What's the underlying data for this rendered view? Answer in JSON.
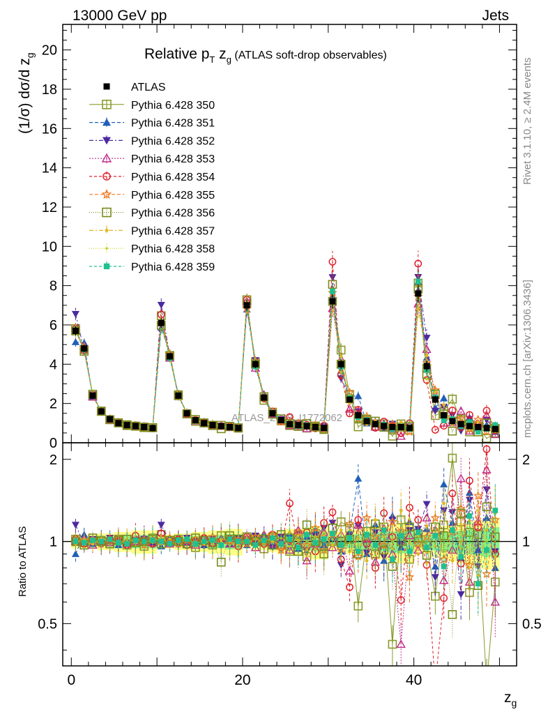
{
  "header": {
    "energy_label": "13000 GeV pp",
    "process_label": "Jets",
    "side_rivet": "Rivet 3.1.10, ≥ 2.4M events",
    "side_mcplots": "mcplots.cern.ch [arXiv:1306.3436]",
    "watermark": "ATLAS_2019_I1772062"
  },
  "chart_data": {
    "type": "scatter",
    "title": {
      "prefix": "Relative p",
      "sub_T": "T",
      "mid": " z",
      "sub_g": "g",
      "suffix": " (ATLAS soft-drop observables)"
    },
    "ylabel": {
      "prefix": "(1/σ) dσ/d z",
      "sub": "g"
    },
    "xlabel": {
      "prefix": "z",
      "sub": "g"
    },
    "ratio_ylabel": "Ratio to ATLAS",
    "xlim": [
      -1,
      52
    ],
    "ylim": [
      0,
      21.3
    ],
    "ratio_ylim": [
      0.35,
      2.3
    ],
    "xticks": [
      "0",
      "20",
      "40"
    ],
    "xtick_values": [
      0,
      20,
      40
    ],
    "yticks": [
      "0",
      "2",
      "4",
      "6",
      "8",
      "10",
      "12",
      "14",
      "16",
      "18",
      "20"
    ],
    "ytick_values": [
      0,
      2,
      4,
      6,
      8,
      10,
      12,
      14,
      16,
      18,
      20
    ],
    "ratio_ticks": [
      "0.5",
      "1",
      "2"
    ],
    "ratio_tick_values": [
      0.5,
      1,
      2
    ],
    "x": [
      0.5,
      1.5,
      2.5,
      3.5,
      4.5,
      5.5,
      6.5,
      7.5,
      8.5,
      9.5,
      10.5,
      11.5,
      12.5,
      13.5,
      14.5,
      15.5,
      16.5,
      17.5,
      18.5,
      19.5,
      20.5,
      21.5,
      22.5,
      23.5,
      24.5,
      25.5,
      26.5,
      27.5,
      28.5,
      29.5,
      30.5,
      31.5,
      32.5,
      33.5,
      34.5,
      35.5,
      36.5,
      37.5,
      38.5,
      39.5,
      40.5,
      41.5,
      42.5,
      43.5,
      44.5,
      45.5,
      46.5,
      47.5,
      48.5,
      49.5
    ],
    "data": {
      "name": "ATLAS",
      "values": [
        5.7,
        4.8,
        2.4,
        1.6,
        1.2,
        1.0,
        0.9,
        0.85,
        0.8,
        0.75,
        6.1,
        4.4,
        2.4,
        1.5,
        1.15,
        1.0,
        0.9,
        0.85,
        0.8,
        0.75,
        7.0,
        4.0,
        2.3,
        1.5,
        1.15,
        0.95,
        0.9,
        0.85,
        0.8,
        0.75,
        7.2,
        4.0,
        2.2,
        1.4,
        1.1,
        0.95,
        0.85,
        0.8,
        0.8,
        0.75,
        7.6,
        3.9,
        2.2,
        1.4,
        1.1,
        0.95,
        0.85,
        0.8,
        0.75,
        0.7
      ],
      "rel_err": [
        0.04,
        0.04,
        0.04,
        0.05,
        0.05,
        0.06,
        0.06,
        0.07,
        0.07,
        0.07,
        0.04,
        0.04,
        0.05,
        0.05,
        0.06,
        0.06,
        0.07,
        0.07,
        0.08,
        0.08,
        0.04,
        0.05,
        0.05,
        0.06,
        0.07,
        0.08,
        0.08,
        0.09,
        0.1,
        0.1,
        0.05,
        0.06,
        0.07,
        0.08,
        0.09,
        0.1,
        0.1,
        0.11,
        0.12,
        0.12,
        0.06,
        0.07,
        0.09,
        0.1,
        0.11,
        0.12,
        0.13,
        0.14,
        0.15,
        0.16
      ]
    },
    "series": [
      {
        "name": "Pythia 6.428 350",
        "color": "#8a9a2c",
        "marker": "square-open",
        "dash": "",
        "ratio": [
          1.02,
          0.99,
          1.0,
          1.01,
          0.98,
          1.02,
          0.97,
          1.0,
          0.96,
          1.03,
          1.06,
          1.0,
          1.02,
          0.98,
          0.95,
          1.01,
          0.97,
          1.05,
          1.02,
          0.99,
          1.01,
          1.03,
          0.94,
          1.04,
          0.97,
          0.92,
          1.06,
          0.88,
          1.07,
          0.96,
          1.0,
          1.18,
          1.12,
          0.58,
          1.03,
          0.9,
          1.13,
          0.42,
          1.2,
          0.86,
          1.07,
          0.97,
          0.63,
          1.15,
          2.02,
          1.18,
          0.65,
          1.06,
          0.3,
          0.71
        ]
      },
      {
        "name": "Pythia 6.428 351",
        "color": "#1f5fb8",
        "marker": "triangle-up",
        "dash": "5,3",
        "ratio": [
          0.9,
          1.06,
          0.98,
          1.02,
          1.0,
          0.97,
          1.01,
          1.02,
          0.99,
          1.0,
          0.96,
          1.03,
          1.01,
          0.99,
          1.02,
          0.97,
          1.0,
          1.03,
          0.98,
          1.02,
          0.97,
          1.01,
          1.05,
          0.96,
          1.02,
          1.07,
          0.94,
          1.04,
          1.1,
          0.97,
          1.03,
          0.92,
          1.08,
          1.7,
          0.9,
          1.15,
          0.85,
          1.24,
          0.95,
          1.18,
          1.08,
          1.11,
          0.81,
          1.62,
          1.17,
          0.87,
          1.51,
          0.93,
          1.22,
          0.8
        ]
      },
      {
        "name": "Pythia 6.428 352",
        "color": "#4b2aa0",
        "marker": "triangle-down",
        "dash": "6,3,2,3",
        "ratio": [
          1.15,
          0.98,
          1.02,
          0.97,
          1.03,
          1.0,
          0.98,
          1.01,
          1.02,
          0.97,
          1.15,
          1.0,
          0.97,
          1.03,
          1.0,
          0.96,
          1.02,
          0.99,
          1.01,
          1.03,
          0.97,
          1.05,
          0.99,
          0.95,
          1.04,
          0.98,
          1.07,
          0.93,
          1.05,
          1.12,
          1.17,
          0.82,
          1.05,
          1.14,
          0.91,
          1.08,
          0.88,
          1.2,
          0.97,
          1.1,
          1.11,
          1.37,
          0.74,
          1.3,
          1.28,
          0.64,
          1.42,
          0.81,
          1.55,
          0.92
        ]
      },
      {
        "name": "Pythia 6.428 353",
        "color": "#c02a8a",
        "marker": "triangle-open",
        "dash": "2,2",
        "ratio": [
          1.0,
          1.02,
          0.97,
          1.01,
          0.99,
          1.02,
          0.98,
          1.0,
          1.03,
          0.99,
          1.01,
          0.98,
          1.02,
          1.0,
          0.97,
          1.03,
          0.99,
          1.01,
          0.98,
          1.02,
          1.03,
          0.95,
          1.06,
          0.98,
          1.01,
          0.93,
          1.1,
          0.85,
          0.98,
          1.08,
          0.95,
          1.06,
          0.78,
          1.15,
          1.02,
          0.84,
          1.12,
          0.9,
          0.42,
          1.05,
          0.93,
          1.22,
          1.1,
          0.72,
          0.93,
          1.7,
          0.71,
          1.18,
          1.83,
          0.6
        ]
      },
      {
        "name": "Pythia 6.428 354",
        "color": "#e0202a",
        "marker": "circle-open",
        "dash": "4,3",
        "ratio": [
          1.02,
          0.98,
          1.01,
          0.99,
          1.02,
          1.0,
          0.97,
          1.05,
          1.0,
          0.98,
          1.07,
          0.99,
          1.02,
          0.97,
          1.01,
          1.03,
          0.98,
          1.0,
          1.02,
          0.96,
          1.04,
          0.99,
          0.98,
          1.06,
          0.95,
          1.38,
          0.96,
          1.08,
          0.92,
          1.17,
          1.28,
          0.86,
          0.68,
          1.2,
          0.98,
          0.8,
          1.27,
          1.04,
          0.61,
          1.33,
          1.2,
          0.82,
          0.3,
          0.62,
          1.5,
          0.83,
          1.67,
          1.13,
          2.18,
          0.9
        ]
      },
      {
        "name": "Pythia 6.428 355",
        "color": "#f07820",
        "marker": "star",
        "dash": "5,3",
        "ratio": [
          0.99,
          1.01,
          1.02,
          0.98,
          1.0,
          1.03,
          0.99,
          1.01,
          0.97,
          1.02,
          1.0,
          1.03,
          0.98,
          1.01,
          1.02,
          0.99,
          1.04,
          0.98,
          1.0,
          1.02,
          0.98,
          1.04,
          1.0,
          1.05,
          0.93,
          1.0,
          1.08,
          0.97,
          1.12,
          0.93,
          1.06,
          0.94,
          1.16,
          0.88,
          1.22,
          1.04,
          0.97,
          1.18,
          1.09,
          0.74,
          0.98,
          1.04,
          1.22,
          0.86,
          1.09,
          1.32,
          0.82,
          1.47,
          0.76,
          1.2
        ]
      },
      {
        "name": "Pythia 6.428 356",
        "color": "#7a8a1a",
        "marker": "square-open",
        "dash": "1,2",
        "ratio": [
          1.0,
          0.97,
          1.03,
          1.0,
          0.98,
          1.01,
          1.02,
          0.99,
          1.0,
          1.02,
          0.98,
          1.01,
          1.0,
          0.98,
          1.03,
          1.01,
          0.99,
          0.84,
          1.05,
          1.02,
          1.04,
          1.0,
          1.02,
          0.97,
          1.06,
          1.03,
          0.92,
          1.15,
          1.0,
          0.9,
          1.12,
          1.0,
          1.02,
          0.9,
          1.09,
          1.16,
          0.93,
          0.81,
          1.0,
          1.13,
          1.03,
          0.89,
          1.13,
          1.05,
          0.54,
          1.27,
          1.08,
          0.69,
          1.34,
          1.04
        ]
      },
      {
        "name": "Pythia 6.428 357",
        "color": "#e0b820",
        "marker": "dot",
        "dash": "6,3,2,3",
        "ratio": [
          1.01,
          1.0,
          0.98,
          1.02,
          1.01,
          0.98,
          1.02,
          1.0,
          0.99,
          1.01,
          1.03,
          0.98,
          1.0,
          1.02,
          0.99,
          1.01,
          0.98,
          1.02,
          1.0,
          0.98,
          1.02,
          0.98,
          1.03,
          1.0,
          0.97,
          1.08,
          1.01,
          0.93,
          1.04,
          1.06,
          0.97,
          1.1,
          0.92,
          1.03,
          0.85,
          1.2,
          1.05,
          0.95,
          1.3,
          1.0,
          0.9,
          1.14,
          0.96,
          1.38,
          0.85,
          1.0,
          1.19,
          0.75,
          1.1,
          1.27
        ]
      },
      {
        "name": "Pythia 6.428 358",
        "color": "#c8d01a",
        "marker": "dot-small",
        "dash": "1,2",
        "ratio": [
          0.98,
          1.02,
          1.0,
          0.99,
          1.01,
          0.98,
          1.0,
          1.02,
          1.01,
          0.99,
          0.98,
          1.02,
          0.99,
          1.01,
          1.0,
          0.98,
          1.02,
          1.0,
          0.97,
          1.01,
          0.99,
          1.02,
          0.98,
          1.01,
          1.03,
          0.96,
          1.05,
          1.0,
          0.94,
          1.08,
          1.02,
          0.9,
          1.1,
          0.96,
          1.04,
          0.89,
          1.16,
          1.0,
          0.92,
          1.21,
          1.05,
          0.83,
          1.17,
          0.92,
          1.12,
          0.95,
          0.8,
          1.3,
          1.0,
          0.88
        ]
      },
      {
        "name": "Pythia 6.428 359",
        "color": "#20c090",
        "marker": "square-filled",
        "dash": "4,3",
        "ratio": [
          1.0,
          0.99,
          1.01,
          1.0,
          1.02,
          0.99,
          0.98,
          1.01,
          1.0,
          1.01,
          1.0,
          0.98,
          1.01,
          1.02,
          0.98,
          1.0,
          1.01,
          0.97,
          1.02,
          1.0,
          1.0,
          0.97,
          1.01,
          1.03,
          0.98,
          1.02,
          0.95,
          1.06,
          0.99,
          1.02,
          1.07,
          0.97,
          1.03,
          0.92,
          1.06,
          0.97,
          1.1,
          0.86,
          1.05,
          0.92,
          1.08,
          0.95,
          1.05,
          0.81,
          1.1,
          0.88,
          1.24,
          0.7,
          0.93,
          1.3
        ]
      }
    ],
    "legend_position": "top-left",
    "grid": false
  }
}
